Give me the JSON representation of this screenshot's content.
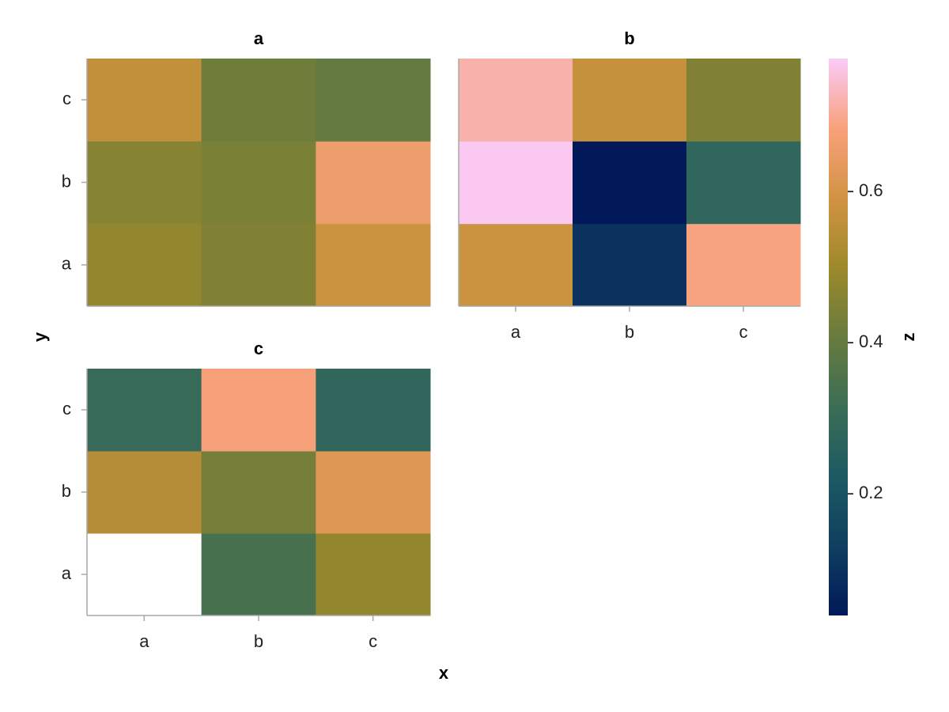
{
  "chart_data": {
    "type": "heatmap",
    "x_label": "x",
    "y_label": "y",
    "x_categories": [
      "a",
      "b",
      "c"
    ],
    "y_categories": [
      "a",
      "b",
      "c"
    ],
    "facets": [
      {
        "title": "a",
        "values": [
          [
            0.48,
            0.45,
            0.58
          ],
          [
            0.46,
            0.44,
            0.66
          ],
          [
            0.56,
            0.42,
            0.4
          ]
        ]
      },
      {
        "title": "b",
        "values": [
          [
            0.58,
            0.1,
            0.69
          ],
          [
            0.77,
            0.04,
            0.28
          ],
          [
            0.72,
            0.57,
            0.45
          ]
        ]
      },
      {
        "title": "c",
        "values": [
          [
            null,
            0.34,
            0.48
          ],
          [
            0.54,
            0.43,
            0.62
          ],
          [
            0.3,
            0.68,
            0.28
          ]
        ]
      }
    ],
    "colorbar_label": "z",
    "zlim": [
      0.039,
      0.776
    ],
    "zticks": [
      0.2,
      0.4,
      0.6
    ],
    "colormap": [
      "#011959",
      "#103f60",
      "#1c5a62",
      "#3c6d56",
      "#687b3e",
      "#9d892b",
      "#d29343",
      "#f8a17b",
      "#facbf9"
    ]
  }
}
